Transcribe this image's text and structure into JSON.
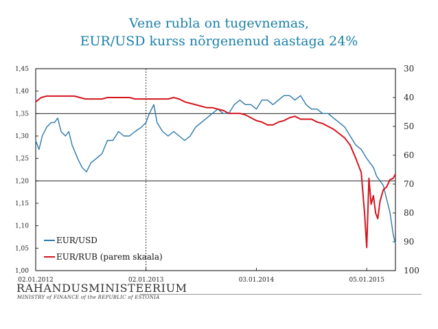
{
  "header": {
    "title_line1": "Vene rubla on tugevnemas,",
    "title_line2": "EUR/USD kurss nõrgenenud aastaga 24%"
  },
  "branding": {
    "logo_text": "RAHANDUSMINISTEERIUM",
    "logo_subtext": "MINISTRY of FINANCE of the REPUBLIC of ESTONIA"
  },
  "colors": {
    "title": "#1a7fa8",
    "eur_usd": "#2a77a8",
    "eur_rub": "#d4141c"
  },
  "chart_data": {
    "type": "line",
    "title": "",
    "x_ticks": [
      "02.01.2012",
      "02.01.2013",
      "03.01.2014",
      "05.01.2015"
    ],
    "x_tick_positions": [
      0,
      1,
      2,
      3
    ],
    "x_range": [
      0,
      3.26
    ],
    "vertical_marker_at": 1,
    "y_left": {
      "ticks": [
        "1,00",
        "1,05",
        "1,10",
        "1,15",
        "1,20",
        "1,25",
        "1,30",
        "1,35",
        "1,40",
        "1,45"
      ],
      "range": [
        1.0,
        1.45
      ]
    },
    "y_right": {
      "ticks": [
        "30",
        "40",
        "50",
        "60",
        "70",
        "80",
        "90",
        "100"
      ],
      "range": [
        30,
        100
      ],
      "inverted": true
    },
    "grid_y": [
      1.2,
      1.35
    ],
    "legend_position": "bottom-left",
    "series": [
      {
        "name": "EUR/USD",
        "axis": "left",
        "x": [
          0,
          0.03,
          0.06,
          0.1,
          0.14,
          0.17,
          0.2,
          0.23,
          0.27,
          0.3,
          0.33,
          0.38,
          0.42,
          0.46,
          0.5,
          0.55,
          0.6,
          0.65,
          0.7,
          0.75,
          0.8,
          0.85,
          0.9,
          0.96,
          1.0,
          1.03,
          1.07,
          1.1,
          1.15,
          1.2,
          1.25,
          1.3,
          1.35,
          1.4,
          1.45,
          1.5,
          1.55,
          1.6,
          1.65,
          1.7,
          1.75,
          1.8,
          1.85,
          1.9,
          1.95,
          2.0,
          2.05,
          2.1,
          2.15,
          2.2,
          2.25,
          2.3,
          2.35,
          2.4,
          2.45,
          2.5,
          2.55,
          2.6,
          2.65,
          2.7,
          2.75,
          2.8,
          2.85,
          2.9,
          2.95,
          3.0,
          3.03,
          3.06,
          3.09,
          3.12,
          3.15,
          3.18,
          3.21,
          3.24,
          3.26
        ],
        "values": [
          1.29,
          1.27,
          1.3,
          1.32,
          1.33,
          1.33,
          1.34,
          1.31,
          1.3,
          1.31,
          1.28,
          1.25,
          1.23,
          1.22,
          1.24,
          1.25,
          1.26,
          1.29,
          1.29,
          1.31,
          1.3,
          1.3,
          1.31,
          1.32,
          1.33,
          1.35,
          1.37,
          1.33,
          1.31,
          1.3,
          1.31,
          1.3,
          1.29,
          1.3,
          1.32,
          1.33,
          1.34,
          1.35,
          1.36,
          1.35,
          1.35,
          1.37,
          1.38,
          1.37,
          1.37,
          1.36,
          1.38,
          1.38,
          1.37,
          1.38,
          1.39,
          1.39,
          1.38,
          1.39,
          1.37,
          1.36,
          1.36,
          1.35,
          1.35,
          1.34,
          1.33,
          1.32,
          1.3,
          1.28,
          1.27,
          1.25,
          1.24,
          1.23,
          1.21,
          1.2,
          1.19,
          1.16,
          1.13,
          1.08,
          1.06
        ]
      },
      {
        "name": "EUR/RUB (parem skaala)",
        "axis": "right",
        "x": [
          0,
          0.05,
          0.1,
          0.15,
          0.2,
          0.25,
          0.3,
          0.35,
          0.4,
          0.45,
          0.5,
          0.55,
          0.6,
          0.65,
          0.7,
          0.75,
          0.8,
          0.85,
          0.9,
          0.95,
          1.0,
          1.05,
          1.1,
          1.15,
          1.2,
          1.25,
          1.3,
          1.35,
          1.4,
          1.45,
          1.5,
          1.55,
          1.6,
          1.65,
          1.7,
          1.75,
          1.8,
          1.85,
          1.9,
          1.95,
          2.0,
          2.05,
          2.1,
          2.15,
          2.2,
          2.25,
          2.3,
          2.35,
          2.4,
          2.45,
          2.5,
          2.55,
          2.6,
          2.65,
          2.7,
          2.75,
          2.8,
          2.85,
          2.9,
          2.95,
          2.98,
          3.0,
          3.02,
          3.04,
          3.06,
          3.08,
          3.1,
          3.12,
          3.15,
          3.18,
          3.21,
          3.24,
          3.26
        ],
        "values": [
          41.5,
          40.0,
          39.5,
          39.5,
          39.5,
          39.5,
          39.5,
          39.5,
          40.0,
          40.5,
          40.5,
          40.5,
          40.5,
          40.0,
          40.0,
          40.0,
          40.0,
          40.0,
          40.5,
          40.5,
          40.5,
          40.5,
          40.5,
          40.5,
          40.5,
          40.0,
          40.5,
          41.5,
          42.0,
          42.5,
          43.0,
          43.5,
          43.5,
          44.0,
          44.5,
          45.5,
          45.5,
          45.5,
          46.0,
          47.0,
          48.0,
          48.5,
          49.5,
          49.5,
          48.5,
          48.0,
          47.0,
          46.5,
          47.5,
          47.5,
          47.5,
          48.5,
          49.0,
          50.0,
          51.0,
          52.5,
          54.0,
          56.5,
          61.0,
          66.0,
          80.0,
          92.0,
          68.0,
          77.0,
          74.0,
          80.0,
          82.0,
          76.0,
          72.0,
          71.0,
          68.5,
          68.0,
          66.5
        ]
      }
    ]
  }
}
